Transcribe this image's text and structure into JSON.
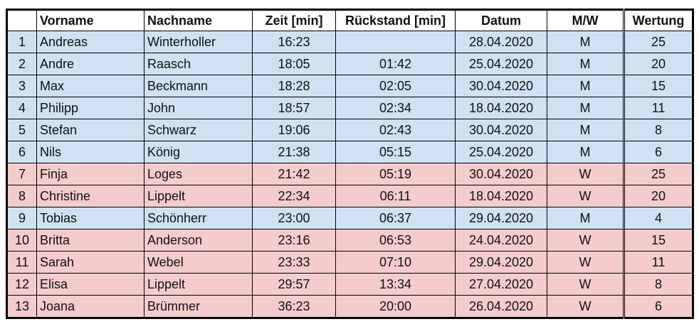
{
  "table": {
    "header": [
      "",
      "Vorname",
      "Nachname",
      "Zeit [min]",
      "Rückstand [min]",
      "Datum",
      "M/W",
      "Wertung"
    ],
    "rows": [
      [
        "1",
        "Andreas",
        "Winterholler",
        "16:23",
        null,
        "28.04.2020",
        "M",
        "25"
      ],
      [
        "2",
        "Andre",
        "Raasch",
        "18:05",
        "01:42",
        "25.04.2020",
        "M",
        "20"
      ],
      [
        "3",
        "Max",
        "Beckmann",
        "18:28",
        "02:05",
        "30.04.2020",
        "M",
        "15"
      ],
      [
        "4",
        "Philipp",
        "John",
        "18:57",
        "02:34",
        "18.04.2020",
        "M",
        "11"
      ],
      [
        "5",
        "Stefan",
        "Schwarz",
        "19:06",
        "02:43",
        "30.04.2020",
        "M",
        "8"
      ],
      [
        "6",
        "Nils",
        "König",
        "21:38",
        "05:15",
        "25.04.2020",
        "M",
        "6"
      ],
      [
        "7",
        "Finja",
        "Loges",
        "21:42",
        "05:19",
        "30.04.2020",
        "W",
        "25"
      ],
      [
        "8",
        "Christine",
        "Lippelt",
        "22:34",
        "06:11",
        "18.04.2020",
        "W",
        "20"
      ],
      [
        "9",
        "Tobias",
        "Schönherr",
        "23:00",
        "06:37",
        "29.04.2020",
        "M",
        "4"
      ],
      [
        "10",
        "Britta",
        "Anderson",
        "23:16",
        "06:53",
        "24.04.2020",
        "W",
        "15"
      ],
      [
        "11",
        "Sarah",
        "Webel",
        "23:33",
        "07:10",
        "29.04.2020",
        "W",
        "11"
      ],
      [
        "12",
        "Elisa",
        "Lippelt",
        "29:57",
        "13:34",
        "27.04.2020",
        "W",
        "8"
      ],
      [
        "13",
        "Joana",
        "Brümmer",
        "36:23",
        "20:00",
        "26.04.2020",
        "W",
        "6"
      ]
    ],
    "row_colors": {
      "M": "#cfe2f3",
      "W": "#f4cccc"
    }
  }
}
